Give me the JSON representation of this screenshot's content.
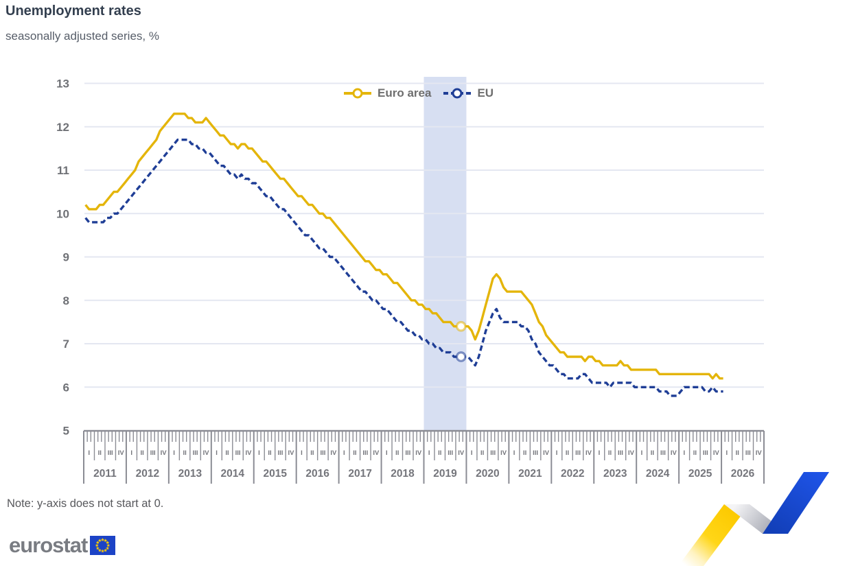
{
  "header": {
    "title": "Unemployment rates",
    "subtitle": "seasonally adjusted series, %"
  },
  "legend": {
    "items": [
      {
        "label": "Euro area"
      },
      {
        "label": "EU"
      }
    ]
  },
  "note": "Note: y-axis does not start at 0.",
  "footer": {
    "logo_text": "eurostat",
    "flag_blue": "#1c43c6",
    "flag_star_yellow": "#ffcc00"
  },
  "colors": {
    "euro_area_line": "#e4b50a",
    "eu_line": "#1f3e96",
    "highlight_band": "#d7dff2",
    "gridline": "#e4e7f1",
    "axis_gray": "#8b8c94",
    "label_gray": "#74757b"
  },
  "chart_data": {
    "type": "line",
    "title": "Unemployment rates",
    "subtitle": "seasonally adjusted series, %",
    "unit": "%",
    "start": "2011-01",
    "frequency": "monthly",
    "ylim": [
      5,
      13
    ],
    "yticks": [
      5,
      6,
      7,
      8,
      9,
      10,
      11,
      12,
      13
    ],
    "grid": true,
    "legend_position": "top-center",
    "years": [
      2011,
      2012,
      2013,
      2014,
      2015,
      2016,
      2017,
      2018,
      2019,
      2020,
      2021,
      2022,
      2023,
      2024,
      2025,
      2026
    ],
    "quarter_labels": [
      "I",
      "II",
      "III",
      "IV"
    ],
    "highlight_band": {
      "from_year": 2019,
      "to_year": 2020,
      "color": "#d7dff2"
    },
    "series": [
      {
        "name": "Euro area",
        "color": "#e4b50a",
        "style": "solid",
        "marker_point": {
          "month": "2019-11",
          "value": 7.4
        },
        "values": [
          10.2,
          10.1,
          10.1,
          10.1,
          10.2,
          10.2,
          10.3,
          10.4,
          10.5,
          10.5,
          10.6,
          10.7,
          10.8,
          10.9,
          11.0,
          11.2,
          11.3,
          11.4,
          11.5,
          11.6,
          11.7,
          11.9,
          12.0,
          12.1,
          12.2,
          12.3,
          12.3,
          12.3,
          12.3,
          12.2,
          12.2,
          12.1,
          12.1,
          12.1,
          12.2,
          12.1,
          12.0,
          11.9,
          11.8,
          11.8,
          11.7,
          11.6,
          11.6,
          11.5,
          11.6,
          11.6,
          11.5,
          11.5,
          11.4,
          11.3,
          11.2,
          11.2,
          11.1,
          11.0,
          10.9,
          10.8,
          10.8,
          10.7,
          10.6,
          10.5,
          10.4,
          10.4,
          10.3,
          10.2,
          10.2,
          10.1,
          10.0,
          10.0,
          9.9,
          9.9,
          9.8,
          9.7,
          9.6,
          9.5,
          9.4,
          9.3,
          9.2,
          9.1,
          9.0,
          8.9,
          8.9,
          8.8,
          8.7,
          8.7,
          8.6,
          8.6,
          8.5,
          8.4,
          8.4,
          8.3,
          8.2,
          8.1,
          8.0,
          8.0,
          7.9,
          7.9,
          7.8,
          7.8,
          7.7,
          7.7,
          7.6,
          7.5,
          7.5,
          7.5,
          7.4,
          7.4,
          7.4,
          7.4,
          7.4,
          7.3,
          7.1,
          7.3,
          7.6,
          7.9,
          8.2,
          8.5,
          8.6,
          8.5,
          8.3,
          8.2,
          8.2,
          8.2,
          8.2,
          8.2,
          8.1,
          8.0,
          7.9,
          7.7,
          7.5,
          7.4,
          7.2,
          7.1,
          7.0,
          6.9,
          6.8,
          6.8,
          6.7,
          6.7,
          6.7,
          6.7,
          6.7,
          6.6,
          6.7,
          6.7,
          6.6,
          6.6,
          6.5,
          6.5,
          6.5,
          6.5,
          6.5,
          6.6,
          6.5,
          6.5,
          6.4,
          6.4,
          6.4,
          6.4,
          6.4,
          6.4,
          6.4,
          6.4,
          6.3,
          6.3,
          6.3,
          6.3,
          6.3,
          6.3,
          6.3,
          6.3,
          6.3,
          6.3,
          6.3,
          6.3,
          6.3,
          6.3,
          6.3,
          6.2,
          6.3,
          6.2,
          6.2
        ]
      },
      {
        "name": "EU",
        "color": "#1f3e96",
        "style": "dashed",
        "marker_point": {
          "month": "2019-11",
          "value": 6.7
        },
        "values": [
          9.9,
          9.8,
          9.8,
          9.8,
          9.8,
          9.8,
          9.9,
          9.9,
          10.0,
          10.0,
          10.1,
          10.2,
          10.3,
          10.4,
          10.5,
          10.6,
          10.7,
          10.8,
          10.9,
          11.0,
          11.1,
          11.2,
          11.3,
          11.4,
          11.5,
          11.6,
          11.7,
          11.7,
          11.7,
          11.7,
          11.6,
          11.6,
          11.5,
          11.5,
          11.4,
          11.4,
          11.3,
          11.2,
          11.1,
          11.1,
          11.0,
          10.9,
          10.9,
          10.8,
          10.9,
          10.8,
          10.8,
          10.7,
          10.7,
          10.6,
          10.5,
          10.4,
          10.4,
          10.3,
          10.2,
          10.1,
          10.1,
          10.0,
          9.9,
          9.8,
          9.7,
          9.6,
          9.5,
          9.5,
          9.4,
          9.3,
          9.2,
          9.2,
          9.1,
          9.0,
          9.0,
          8.9,
          8.8,
          8.7,
          8.6,
          8.5,
          8.4,
          8.3,
          8.2,
          8.2,
          8.1,
          8.0,
          8.0,
          7.9,
          7.8,
          7.8,
          7.7,
          7.6,
          7.5,
          7.5,
          7.4,
          7.3,
          7.3,
          7.2,
          7.2,
          7.1,
          7.1,
          7.0,
          7.0,
          6.9,
          6.9,
          6.8,
          6.8,
          6.8,
          6.7,
          6.7,
          6.7,
          6.7,
          6.7,
          6.6,
          6.5,
          6.7,
          7.0,
          7.3,
          7.5,
          7.7,
          7.8,
          7.6,
          7.5,
          7.5,
          7.5,
          7.5,
          7.5,
          7.4,
          7.4,
          7.3,
          7.1,
          7.0,
          6.8,
          6.7,
          6.6,
          6.5,
          6.5,
          6.4,
          6.3,
          6.3,
          6.2,
          6.2,
          6.2,
          6.2,
          6.3,
          6.3,
          6.2,
          6.1,
          6.1,
          6.1,
          6.1,
          6.1,
          6.0,
          6.1,
          6.1,
          6.1,
          6.1,
          6.1,
          6.1,
          6.0,
          6.0,
          6.0,
          6.0,
          6.0,
          6.0,
          6.0,
          5.9,
          5.9,
          5.9,
          5.8,
          5.8,
          5.8,
          5.9,
          6.0,
          6.0,
          6.0,
          6.0,
          6.0,
          6.0,
          5.9,
          5.9,
          6.0,
          5.9,
          5.9,
          5.9
        ]
      }
    ]
  }
}
